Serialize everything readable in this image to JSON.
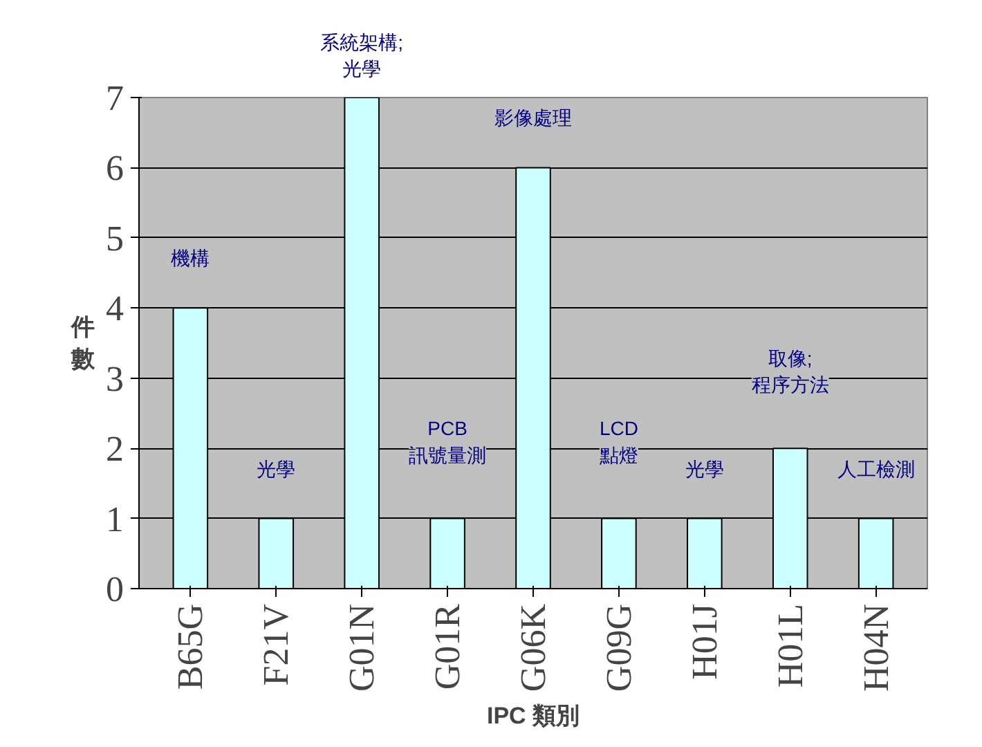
{
  "chart_data": {
    "type": "bar",
    "xlabel": "IPC 類別",
    "ylabel": "件數",
    "categories": [
      "B65G",
      "F21V",
      "G01N",
      "G01R",
      "G06K",
      "G09G",
      "H01J",
      "H01L",
      "H04N"
    ],
    "values": [
      4,
      1,
      7,
      1,
      6,
      1,
      1,
      2,
      1
    ],
    "color": "#ccffff",
    "ylim": [
      0,
      7
    ],
    "yticks": [
      0,
      1,
      2,
      3,
      4,
      5,
      6,
      7
    ],
    "grid": "y",
    "annotations": [
      "機構",
      "光學",
      "系統架構;\n光學",
      "PCB\n訊號量測",
      "影像處理",
      "LCD\n點燈",
      "光學",
      "取像;\n程序方法",
      "人工檢測"
    ]
  }
}
